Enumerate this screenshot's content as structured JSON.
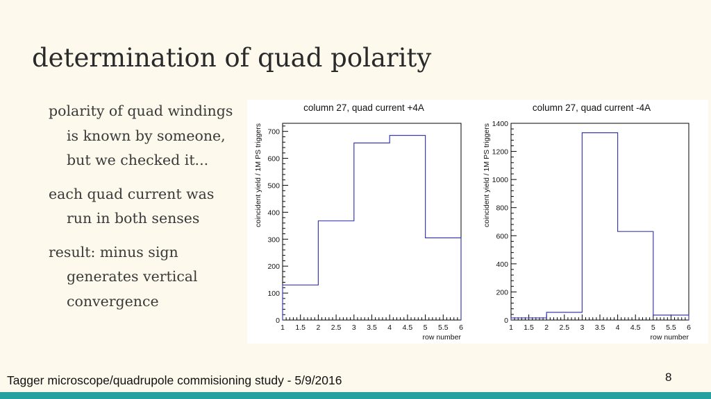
{
  "slide": {
    "title": "determination of quad polarity",
    "bullets": [
      "polarity of quad windings is known by someone, but we checked it...",
      "each quad current was run in both senses",
      "result: minus sign generates vertical convergence"
    ],
    "footer": "Tagger microscope/quadrupole commisioning study - 5/9/2016",
    "page_number": "8",
    "accent_color": "#27a1a0",
    "background_color": "#fdf9ec"
  },
  "chart_data": [
    {
      "type": "histogram",
      "title": "column 27, quad current +4A",
      "xlabel": "row number",
      "ylabel": "coincident yield / 1M PS triggers",
      "xlim": [
        1,
        6
      ],
      "ylim": [
        0,
        730
      ],
      "xticks": [
        "1",
        "1.5",
        "2",
        "2.5",
        "3",
        "3.5",
        "4",
        "4.5",
        "5",
        "5.5",
        "6"
      ],
      "yticks": [
        "0",
        "100",
        "200",
        "300",
        "400",
        "500",
        "600",
        "700"
      ],
      "bins": [
        {
          "x0": 1,
          "x1": 2,
          "value": 130
        },
        {
          "x0": 2,
          "x1": 3,
          "value": 368
        },
        {
          "x0": 3,
          "x1": 4,
          "value": 657
        },
        {
          "x0": 4,
          "x1": 5,
          "value": 685
        },
        {
          "x0": 5,
          "x1": 6,
          "value": 305
        }
      ],
      "line_color": "#3b3bb0"
    },
    {
      "type": "histogram",
      "title": "column 27, quad current -4A",
      "xlabel": "row number",
      "ylabel": "coincident yield / 1M PS triggers",
      "xlim": [
        1,
        6
      ],
      "ylim": [
        0,
        1400
      ],
      "xticks": [
        "1",
        "1.5",
        "2",
        "2.5",
        "3",
        "3.5",
        "4",
        "4.5",
        "5",
        "5.5",
        "6"
      ],
      "yticks": [
        "0",
        "200",
        "400",
        "600",
        "800",
        "1000",
        "1200",
        "1400"
      ],
      "bins": [
        {
          "x0": 1,
          "x1": 2,
          "value": 15
        },
        {
          "x0": 2,
          "x1": 3,
          "value": 55
        },
        {
          "x0": 3,
          "x1": 4,
          "value": 1333
        },
        {
          "x0": 4,
          "x1": 5,
          "value": 630
        },
        {
          "x0": 5,
          "x1": 6,
          "value": 35
        }
      ],
      "line_color": "#3b3bb0"
    }
  ]
}
